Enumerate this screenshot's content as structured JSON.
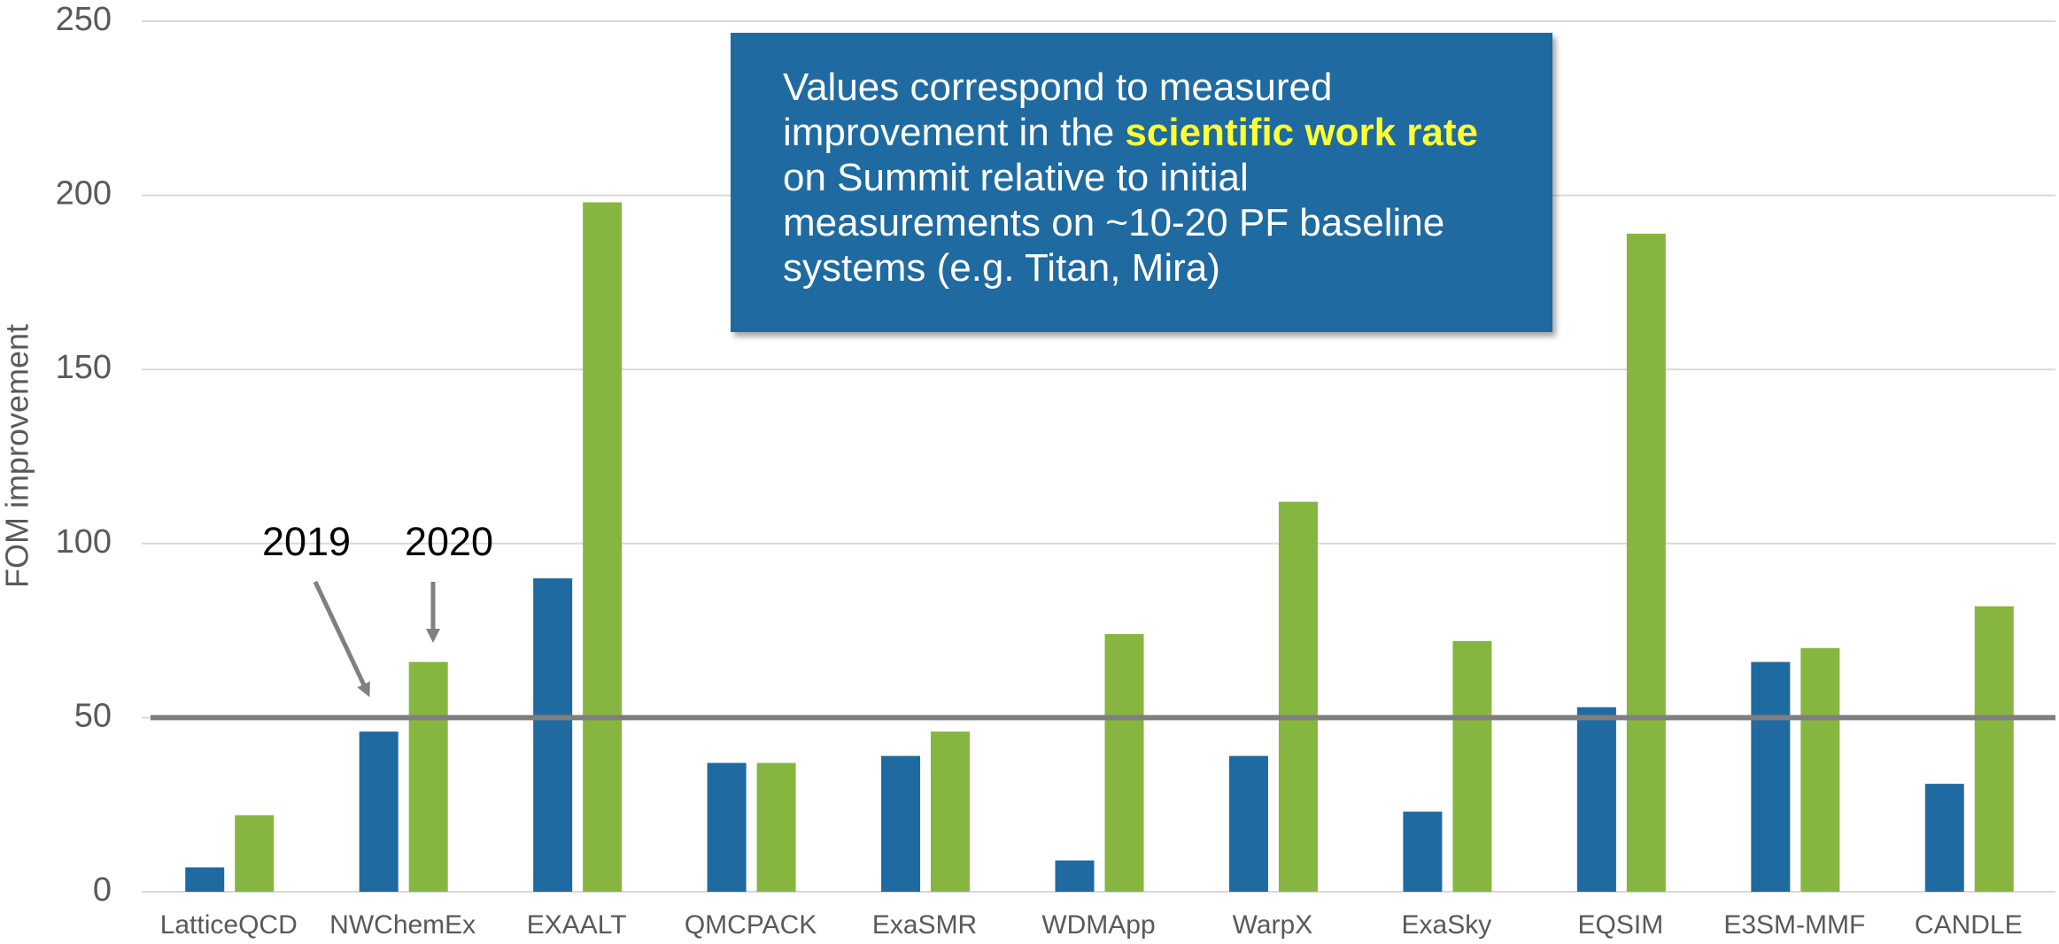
{
  "chart_data": {
    "type": "bar",
    "y_axis_label": "FOM improvement",
    "categories": [
      "LatticeQCD",
      "NWChemEx",
      "EXAALT",
      "QMCPACK",
      "ExaSMR",
      "WDMApp",
      "WarpX",
      "ExaSky",
      "EQSIM",
      "E3SM-MMF",
      "CANDLE"
    ],
    "series": [
      {
        "name": "2019",
        "color": "#1f6aa0",
        "values": [
          7,
          46,
          90,
          37,
          39,
          9,
          39,
          23,
          53,
          66,
          31
        ]
      },
      {
        "name": "2020",
        "color": "#86b640",
        "values": [
          22,
          66,
          198,
          37,
          46,
          74,
          112,
          72,
          189,
          70,
          82
        ]
      }
    ],
    "ylim": [
      0,
      250
    ],
    "yticks": [
      0,
      50,
      100,
      150,
      200,
      250
    ],
    "grid": true,
    "reference_line": {
      "value": 50,
      "color": "#7f7f7f"
    },
    "annotation": {
      "text_parts": [
        "Values correspond to measured improvement in the ",
        "scientific work rate",
        " on Summit relative to initial measurements on ~10-20 PF baseline systems (e.g. Titan, Mira)"
      ]
    }
  }
}
